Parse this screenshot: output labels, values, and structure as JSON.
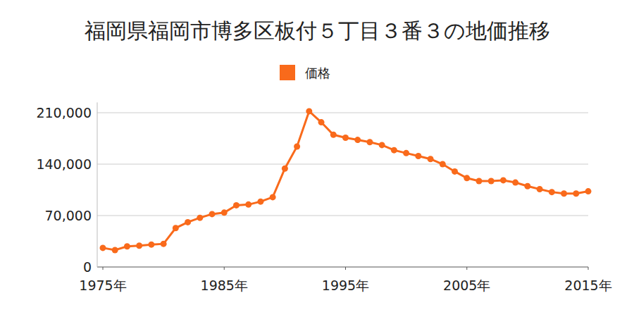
{
  "chart_data": {
    "type": "line",
    "title": "福岡県福岡市博多区板付５丁目３番３の地価推移",
    "x": [
      1975,
      1976,
      1977,
      1978,
      1979,
      1980,
      1981,
      1982,
      1983,
      1984,
      1985,
      1986,
      1987,
      1988,
      1989,
      1990,
      1991,
      1992,
      1993,
      1994,
      1995,
      1996,
      1997,
      1998,
      1999,
      2000,
      2001,
      2002,
      2003,
      2004,
      2005,
      2006,
      2007,
      2008,
      2009,
      2010,
      2011,
      2012,
      2013,
      2014,
      2015
    ],
    "series": [
      {
        "name": "価格",
        "color": "#f96a1b",
        "marker": "circle",
        "values": [
          26000,
          23000,
          28000,
          29000,
          30500,
          31500,
          53000,
          61000,
          67000,
          72000,
          74000,
          84000,
          85000,
          89000,
          95000,
          134000,
          164000,
          212000,
          197000,
          180000,
          176000,
          173000,
          170000,
          166000,
          159000,
          155000,
          151000,
          147000,
          140000,
          130000,
          121000,
          117000,
          117000,
          118000,
          115000,
          110000,
          106000,
          102000,
          100000,
          100000,
          103000
        ]
      }
    ],
    "xlim": [
      1975,
      2015
    ],
    "xticks": [
      {
        "value": 1975,
        "label": "1975年"
      },
      {
        "value": 1985,
        "label": "1985年"
      },
      {
        "value": 1995,
        "label": "1995年"
      },
      {
        "value": 2005,
        "label": "2005年"
      },
      {
        "value": 2015,
        "label": "2015年"
      }
    ],
    "ylim": [
      0,
      224000
    ],
    "yticks": [
      0,
      {
        "value": 70000,
        "label": "70,000"
      },
      {
        "value": 140000,
        "label": "140,000"
      },
      {
        "value": 210000,
        "label": "210,000"
      }
    ],
    "grid": true,
    "legend": "top"
  }
}
